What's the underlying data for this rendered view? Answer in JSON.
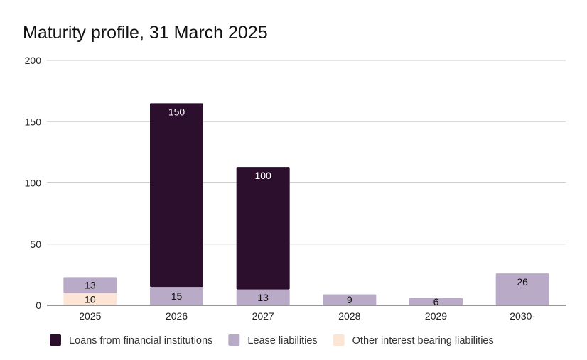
{
  "chart_data": {
    "type": "bar",
    "stacked": true,
    "title": "Maturity profile, 31 March 2025",
    "xlabel": "",
    "ylabel": "",
    "categories": [
      "2025",
      "2026",
      "2027",
      "2028",
      "2029",
      "2030-"
    ],
    "ylim": [
      0,
      200
    ],
    "yticks": [
      0,
      50,
      100,
      150,
      200
    ],
    "grid": true,
    "legend_position": "bottom",
    "series": [
      {
        "name": "Other interest bearing liabilities",
        "color": "#fde5d6",
        "values": [
          10,
          0,
          0,
          0,
          0,
          0
        ]
      },
      {
        "name": "Lease liabilities",
        "color": "#b9abc8",
        "values": [
          13,
          15,
          13,
          9,
          6,
          26
        ]
      },
      {
        "name": "Loans from financial institutions",
        "color": "#2b0f2c",
        "values": [
          0,
          150,
          100,
          0,
          0,
          0
        ]
      }
    ],
    "legend_order": [
      2,
      1,
      0
    ]
  }
}
